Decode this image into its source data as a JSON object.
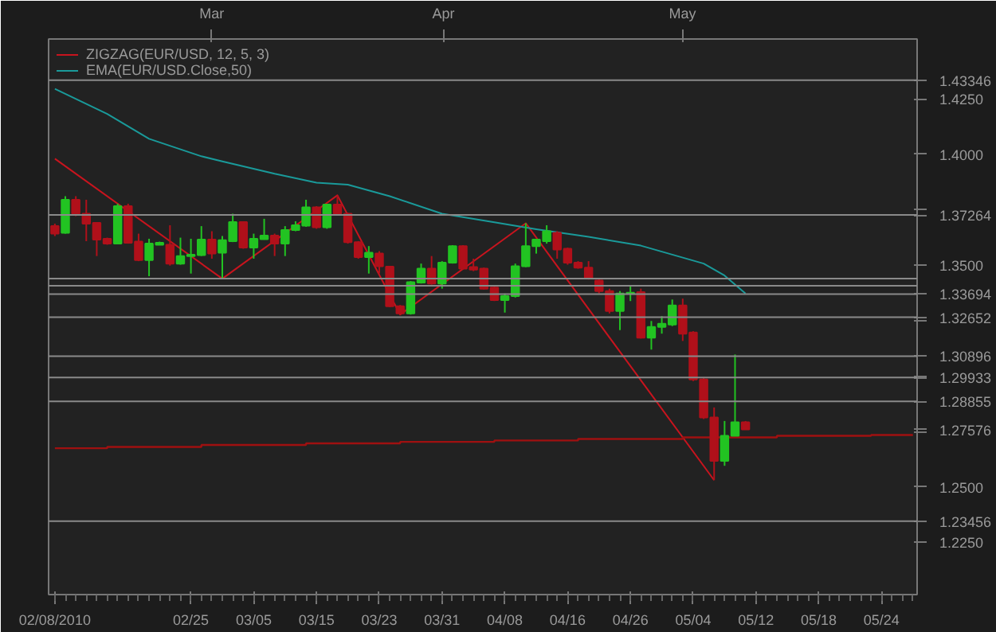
{
  "chart_data": {
    "type": "candlestick",
    "categories": [
      "02/08/2010",
      null,
      null,
      null,
      null,
      null,
      null,
      null,
      null,
      null,
      null,
      null,
      null,
      "02/25",
      null,
      null,
      null,
      null,
      null,
      "03/05",
      null,
      null,
      null,
      null,
      null,
      "03/15",
      null,
      null,
      null,
      null,
      null,
      "03/23",
      null,
      null,
      null,
      null,
      null,
      "03/31",
      null,
      null,
      null,
      null,
      null,
      "04/08",
      null,
      null,
      null,
      null,
      null,
      "04/16",
      null,
      null,
      null,
      null,
      null,
      "04/26",
      null,
      null,
      null,
      null,
      null,
      "05/04",
      null,
      null,
      null,
      null,
      null,
      "05/12",
      null,
      null,
      null,
      null,
      null,
      "05/18",
      null,
      null,
      null,
      null,
      null,
      "05/24",
      null,
      null,
      null
    ],
    "ohlc": [
      [
        1.3676,
        1.3687,
        1.3631,
        1.3642
      ],
      [
        1.3646,
        1.3811,
        1.3642,
        1.3795
      ],
      [
        1.3795,
        1.3811,
        1.3721,
        1.3732
      ],
      [
        1.3732,
        1.3795,
        1.3608,
        1.3687
      ],
      [
        1.3691,
        1.3691,
        1.3541,
        1.3615
      ],
      [
        1.3619,
        1.3624,
        1.3592,
        1.3597
      ],
      [
        1.3597,
        1.3777,
        1.3597,
        1.3766
      ],
      [
        1.3766,
        1.3777,
        1.3597,
        1.3601
      ],
      [
        1.3606,
        1.3642,
        1.3518,
        1.3523
      ],
      [
        1.3523,
        1.3619,
        1.345,
        1.3597
      ],
      [
        1.3592,
        1.3606,
        1.359,
        1.3601
      ],
      [
        1.3592,
        1.368,
        1.3498,
        1.3507
      ],
      [
        1.3507,
        1.3624,
        1.3502,
        1.3541
      ],
      [
        1.3541,
        1.3619,
        1.3462,
        1.3547
      ],
      [
        1.3545,
        1.3676,
        1.3541,
        1.3615
      ],
      [
        1.3615,
        1.3653,
        1.3529,
        1.3552
      ],
      [
        1.3556,
        1.3631,
        1.3439,
        1.3613
      ],
      [
        1.3608,
        1.3732,
        1.3604,
        1.3694
      ],
      [
        1.3694,
        1.3698,
        1.3574,
        1.3579
      ],
      [
        1.3579,
        1.3642,
        1.3529,
        1.3619
      ],
      [
        1.3617,
        1.3709,
        1.3615,
        1.3633
      ],
      [
        1.3633,
        1.3642,
        1.3541,
        1.3597
      ],
      [
        1.3597,
        1.3676,
        1.3541,
        1.3658
      ],
      [
        1.3658,
        1.3698,
        1.3653,
        1.368
      ],
      [
        1.3678,
        1.3795,
        1.3673,
        1.3761
      ],
      [
        1.3761,
        1.3766,
        1.3664,
        1.3671
      ],
      [
        1.3671,
        1.3777,
        1.3664,
        1.3773
      ],
      [
        1.3773,
        1.3815,
        1.3727,
        1.3732
      ],
      [
        1.3732,
        1.3736,
        1.3597,
        1.3604
      ],
      [
        1.3604,
        1.3608,
        1.3529,
        1.3536
      ],
      [
        1.3536,
        1.3586,
        1.3462,
        1.3556
      ],
      [
        1.3552,
        1.3563,
        1.3462,
        1.3495
      ],
      [
        1.3493,
        1.3495,
        1.3311,
        1.3315
      ],
      [
        1.3315,
        1.332,
        1.3277,
        1.3282
      ],
      [
        1.3282,
        1.3428,
        1.3277,
        1.3423
      ],
      [
        1.3421,
        1.3507,
        1.3417,
        1.3484
      ],
      [
        1.3484,
        1.3541,
        1.3412,
        1.3417
      ],
      [
        1.3417,
        1.3518,
        1.3394,
        1.3511
      ],
      [
        1.3511,
        1.359,
        1.3507,
        1.3586
      ],
      [
        1.3586,
        1.359,
        1.348,
        1.3484
      ],
      [
        1.3491,
        1.3529,
        1.3473,
        1.348
      ],
      [
        1.3484,
        1.3489,
        1.339,
        1.3394
      ],
      [
        1.3399,
        1.3405,
        1.3338,
        1.3342
      ],
      [
        1.3342,
        1.3372,
        1.3286,
        1.336
      ],
      [
        1.336,
        1.3507,
        1.3354,
        1.3495
      ],
      [
        1.3495,
        1.3689,
        1.3491,
        1.3586
      ],
      [
        1.3586,
        1.3619,
        1.3552,
        1.3615
      ],
      [
        1.3608,
        1.368,
        1.3597,
        1.3653
      ],
      [
        1.3646,
        1.3653,
        1.3529,
        1.357
      ],
      [
        1.3574,
        1.3579,
        1.3502,
        1.3511
      ],
      [
        1.3511,
        1.3518,
        1.3484,
        1.3489
      ],
      [
        1.3489,
        1.3518,
        1.3435,
        1.3439
      ],
      [
        1.343,
        1.3435,
        1.3372,
        1.3383
      ],
      [
        1.3383,
        1.3394,
        1.3282,
        1.3293
      ],
      [
        1.3293,
        1.3383,
        1.3207,
        1.3372
      ],
      [
        1.3372,
        1.3405,
        1.3338,
        1.3376
      ],
      [
        1.3378,
        1.3394,
        1.3169,
        1.3173
      ],
      [
        1.3173,
        1.3248,
        1.3119,
        1.3221
      ],
      [
        1.3221,
        1.327,
        1.3191,
        1.3236
      ],
      [
        1.3232,
        1.3345,
        1.3225,
        1.3318
      ],
      [
        1.3318,
        1.3349,
        1.3158,
        1.3191
      ],
      [
        1.3196,
        1.3202,
        1.2977,
        1.2984
      ],
      [
        1.2984,
        1.2991,
        1.2806,
        1.2813
      ],
      [
        1.2813,
        1.2858,
        1.253,
        1.2617
      ],
      [
        1.2617,
        1.2797,
        1.2595,
        1.273
      ],
      [
        1.273,
        1.3097,
        1.273,
        1.2791
      ],
      [
        1.2791,
        1.2797,
        1.2759,
        1.2759
      ],
      null,
      null,
      null,
      null,
      null,
      null,
      null,
      null,
      null,
      null,
      null,
      null,
      null,
      null,
      null,
      null
    ],
    "series": [
      {
        "name": "ZIGZAG(EUR/USD, 12, 5, 3)",
        "type": "line",
        "color": "#c8141e",
        "values": [
          1.398,
          null,
          null,
          null,
          null,
          null,
          null,
          null,
          null,
          null,
          null,
          null,
          null,
          null,
          null,
          null,
          1.3439,
          null,
          null,
          null,
          null,
          null,
          null,
          null,
          null,
          null,
          null,
          1.3815,
          null,
          null,
          null,
          null,
          null,
          1.3277,
          null,
          null,
          null,
          null,
          null,
          null,
          null,
          null,
          null,
          null,
          null,
          1.3689,
          null,
          null,
          null,
          null,
          null,
          null,
          null,
          null,
          null,
          null,
          null,
          null,
          null,
          null,
          null,
          null,
          null,
          1.253,
          null,
          null,
          null,
          null,
          null,
          null,
          null,
          null,
          null,
          null,
          null,
          null,
          null,
          null,
          null,
          null,
          null,
          null,
          null
        ]
      },
      {
        "name": "EMA(EUR/USD.Close,50)",
        "type": "line",
        "color": "#1a9a9a",
        "values": [
          1.4295,
          null,
          null,
          null,
          null,
          1.4182,
          null,
          null,
          null,
          1.407,
          null,
          null,
          null,
          null,
          1.3991,
          null,
          1.3968,
          null,
          null,
          null,
          null,
          1.3912,
          null,
          null,
          null,
          1.3872,
          null,
          null,
          1.3863,
          null,
          null,
          null,
          1.3811,
          null,
          null,
          null,
          null,
          1.3732,
          null,
          null,
          null,
          null,
          1.3693,
          null,
          null,
          null,
          1.3662,
          null,
          null,
          null,
          null,
          1.3628,
          null,
          null,
          null,
          null,
          1.3588,
          null,
          null,
          null,
          1.3534,
          null,
          1.3507,
          null,
          1.3453,
          null,
          1.3372,
          null,
          null,
          null,
          null,
          null,
          null,
          null,
          null,
          null,
          null,
          null,
          null,
          null,
          null,
          null,
          null
        ]
      },
      {
        "type": "step",
        "color": "#a01010",
        "values": [
          1.2674,
          1.2674,
          1.2674,
          1.2674,
          1.2674,
          1.268,
          1.268,
          1.268,
          1.268,
          1.268,
          1.268,
          1.268,
          1.268,
          1.268,
          1.2689,
          1.2689,
          1.2689,
          1.2689,
          1.2689,
          1.2689,
          1.2689,
          1.2689,
          1.2689,
          1.2689,
          1.2696,
          1.2696,
          1.2696,
          1.2696,
          1.2696,
          1.2696,
          1.2696,
          1.2696,
          1.2696,
          1.2703,
          1.2703,
          1.2703,
          1.2703,
          1.2703,
          1.2703,
          1.2703,
          1.2703,
          1.2703,
          1.2709,
          1.2709,
          1.2709,
          1.2709,
          1.2709,
          1.2709,
          1.2709,
          1.2709,
          1.2716,
          1.2716,
          1.2716,
          1.2716,
          1.2716,
          1.2716,
          1.2716,
          1.2716,
          1.2716,
          1.2716,
          1.2723,
          1.2723,
          1.2723,
          1.2723,
          1.2723,
          1.2723,
          1.2723,
          1.2723,
          1.2723,
          1.273,
          1.273,
          1.273,
          1.273,
          1.273,
          1.273,
          1.273,
          1.273,
          1.273,
          1.2734,
          1.2734,
          1.2734,
          1.2734,
          1.2734
        ]
      }
    ],
    "ylim": [
      1.2014,
      1.452
    ],
    "yticks": [
      {
        "value": 1.225,
        "label": "1.2250"
      },
      {
        "value": 1.25,
        "label": "1.2500"
      },
      {
        "value": 1.275,
        "label": null
      },
      {
        "value": 1.27576,
        "label": "1.27576"
      },
      {
        "value": 1.3,
        "label": null
      },
      {
        "value": 1.325,
        "label": null
      },
      {
        "value": 1.35,
        "label": "1.3500"
      },
      {
        "value": 1.375,
        "label": null
      },
      {
        "value": 1.4,
        "label": "1.4000"
      },
      {
        "value": 1.425,
        "label": "1.4250"
      }
    ],
    "x2lim": [
      "2010-02-07T04:00",
      "2010-06-03T10:00"
    ],
    "x2ticks": [
      {
        "value": "2010-03-01",
        "label": "Mar"
      },
      {
        "value": "2010-04-01",
        "label": "Apr"
      },
      {
        "value": "2010-05-03",
        "label": "May"
      }
    ],
    "ref_lines": [
      {
        "axis": "y",
        "value": 1.43346,
        "label": "1.43346"
      },
      {
        "axis": "y",
        "value": 1.37264,
        "label": "1.37264"
      },
      {
        "axis": "y",
        "value": 1.3439,
        "label": null
      },
      {
        "axis": "y",
        "value": 1.34074,
        "label": null
      },
      {
        "axis": "y",
        "value": 1.33694,
        "label": "1.33694"
      },
      {
        "axis": "y",
        "value": 1.32652,
        "label": "1.32652"
      },
      {
        "axis": "y",
        "value": 1.30896,
        "label": "1.30896"
      },
      {
        "axis": "y",
        "value": 1.29933,
        "label": "1.29933"
      },
      {
        "axis": "y",
        "value": 1.28855,
        "label": "1.28855"
      },
      {
        "axis": "y",
        "value": 1.23456,
        "label": "1.23456"
      }
    ],
    "legend": "top left"
  }
}
